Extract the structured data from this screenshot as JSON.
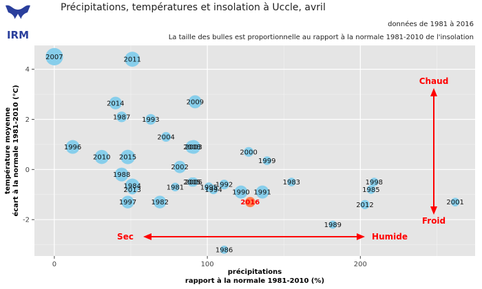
{
  "logo_text": "IRM",
  "chart_data": {
    "type": "scatter",
    "title": "Précipitations, températures et insolation à Uccle, avril",
    "subtitle": "données de 1981 à 2016",
    "subtitle2": "La taille des bulles est proportionnelle au rapport à la normale 1981-2010 de l'insolation",
    "xlabel_line1": "précipitations",
    "xlabel_line2": "rapport à la normale 1981-2010 (%)",
    "ylabel_line1": "température moyenne",
    "ylabel_line2": "écart à la normale 1981-2010 (°C)",
    "xlim": [
      -13,
      275
    ],
    "ylim": [
      -3.45,
      4.95
    ],
    "xticks": [
      0,
      100,
      200
    ],
    "yticks": [
      -2,
      0,
      2,
      4
    ],
    "grid": true,
    "annotations": {
      "chaud": "Chaud",
      "froid": "Froid",
      "sec": "Sec",
      "humide": "Humide"
    },
    "colors": {
      "bubble": "#87ceeb",
      "highlight": "#ff7f50",
      "highlight_label": "#ff0000",
      "annotation": "#ff0000",
      "panel": "#e5e5e5",
      "logo": "#2a3f9c"
    },
    "points": [
      {
        "year": "2007",
        "x": 0,
        "y": 4.5,
        "size": 1.6
      },
      {
        "year": "2011",
        "x": 51,
        "y": 4.4,
        "size": 1.2
      },
      {
        "year": "2009",
        "x": 92,
        "y": 2.7,
        "size": 0.9
      },
      {
        "year": "2014",
        "x": 40,
        "y": 2.65,
        "size": 0.85
      },
      {
        "year": "1987",
        "x": 44,
        "y": 2.1,
        "size": 0.6
      },
      {
        "year": "1993",
        "x": 63,
        "y": 2.0,
        "size": 0.6
      },
      {
        "year": "2004",
        "x": 73,
        "y": 1.3,
        "size": 0.5
      },
      {
        "year": "1996",
        "x": 12,
        "y": 0.9,
        "size": 1.0
      },
      {
        "year": "2003",
        "x": 91,
        "y": 0.9,
        "size": 1.0
      },
      {
        "year": "2008",
        "x": 90,
        "y": 0.9,
        "size": 0.9
      },
      {
        "year": "2010",
        "x": 31,
        "y": 0.5,
        "size": 1.05
      },
      {
        "year": "2015",
        "x": 48,
        "y": 0.5,
        "size": 1.1
      },
      {
        "year": "2000",
        "x": 127,
        "y": 0.7,
        "size": 0.5
      },
      {
        "year": "1999",
        "x": 139,
        "y": 0.35,
        "size": 0.4
      },
      {
        "year": "2002",
        "x": 82,
        "y": 0.1,
        "size": 0.8
      },
      {
        "year": "1988",
        "x": 44,
        "y": -0.2,
        "size": 1.0
      },
      {
        "year": "1984",
        "x": 51,
        "y": -0.65,
        "size": 1.1
      },
      {
        "year": "2013",
        "x": 51,
        "y": -0.8,
        "size": 0.5
      },
      {
        "year": "1981",
        "x": 79,
        "y": -0.7,
        "size": 0.4
      },
      {
        "year": "2005",
        "x": 90,
        "y": -0.5,
        "size": 0.45
      },
      {
        "year": "2006",
        "x": 91,
        "y": -0.5,
        "size": 0.45
      },
      {
        "year": "1995",
        "x": 101,
        "y": -0.7,
        "size": 0.45
      },
      {
        "year": "1994",
        "x": 104,
        "y": -0.8,
        "size": 0.45
      },
      {
        "year": "1992",
        "x": 111,
        "y": -0.6,
        "size": 0.5
      },
      {
        "year": "1990",
        "x": 122,
        "y": -0.9,
        "size": 0.9
      },
      {
        "year": "1991",
        "x": 136,
        "y": -0.9,
        "size": 0.9
      },
      {
        "year": "1983",
        "x": 155,
        "y": -0.5,
        "size": 0.4
      },
      {
        "year": "1998",
        "x": 209,
        "y": -0.5,
        "size": 0.4
      },
      {
        "year": "1985",
        "x": 207,
        "y": -0.8,
        "size": 0.4
      },
      {
        "year": "2012",
        "x": 203,
        "y": -1.4,
        "size": 0.45
      },
      {
        "year": "2001",
        "x": 262,
        "y": -1.3,
        "size": 0.4
      },
      {
        "year": "1997",
        "x": 48,
        "y": -1.3,
        "size": 0.85
      },
      {
        "year": "1982",
        "x": 69,
        "y": -1.3,
        "size": 0.85
      },
      {
        "year": "2016",
        "x": 128,
        "y": -1.3,
        "size": 0.55,
        "highlight": true
      },
      {
        "year": "1989",
        "x": 182,
        "y": -2.2,
        "size": 0.35
      },
      {
        "year": "1986",
        "x": 111,
        "y": -3.2,
        "size": 0.35
      }
    ]
  }
}
